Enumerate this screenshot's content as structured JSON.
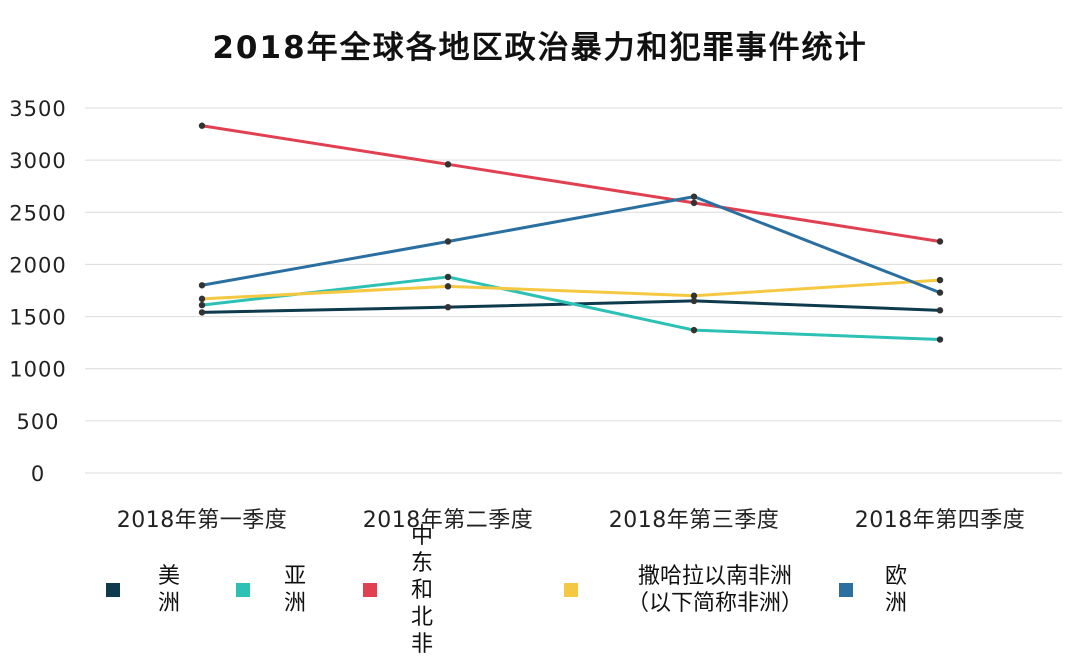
{
  "chart_data": {
    "type": "line",
    "title": "2018年全球各地区政治暴力和犯罪事件统计",
    "xlabel": "",
    "ylabel": "",
    "categories": [
      "2018年第一季度",
      "2018年第二季度",
      "2018年第三季度",
      "2018年第四季度"
    ],
    "ylim": [
      0,
      3500
    ],
    "yticks": [
      0,
      500,
      1000,
      1500,
      2000,
      2500,
      3000,
      3500
    ],
    "grid": true,
    "legend_position": "bottom",
    "series": [
      {
        "name": "美洲",
        "color": "#0d3a4c",
        "values": [
          1540,
          1590,
          1650,
          1560
        ]
      },
      {
        "name": "亚洲",
        "color": "#2cc1b4",
        "values": [
          1610,
          1880,
          1370,
          1280
        ]
      },
      {
        "name": "中东和北非",
        "color": "#e04050",
        "values": [
          3330,
          2960,
          2590,
          2220
        ]
      },
      {
        "name": "撒哈拉以南非洲\n（以下简称非洲）",
        "color": "#f5c842",
        "values": [
          1670,
          1790,
          1700,
          1850
        ]
      },
      {
        "name": "欧洲",
        "color": "#2a6fa0",
        "values": [
          1800,
          2220,
          2650,
          1730
        ]
      }
    ]
  }
}
